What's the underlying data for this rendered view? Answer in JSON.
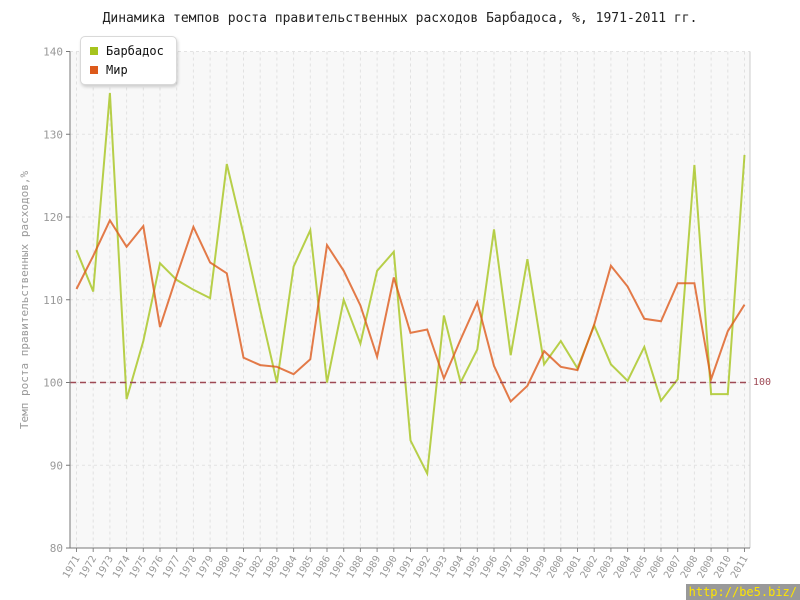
{
  "chart_data": {
    "type": "line",
    "title": "Динамика темпов роста правительственных расходов Барбадоса, %, 1971-2011 гг.",
    "ylabel": "Темп роста правительственных расходов,%",
    "xlabel": "",
    "x": [
      1971,
      1972,
      1973,
      1974,
      1975,
      1976,
      1977,
      1978,
      1979,
      1980,
      1981,
      1982,
      1983,
      1984,
      1985,
      1986,
      1987,
      1988,
      1989,
      1990,
      1991,
      1992,
      1993,
      1994,
      1995,
      1996,
      1997,
      1998,
      1999,
      2000,
      2001,
      2002,
      2003,
      2004,
      2005,
      2006,
      2007,
      2008,
      2009,
      2010,
      2011
    ],
    "series": [
      {
        "name": "Барбадос",
        "color": "#a6c41d",
        "values": [
          116,
          111,
          135,
          98,
          105,
          114.4,
          112.4,
          111.2,
          110.2,
          126.4,
          117.9,
          108.8,
          100,
          114,
          118.4,
          100,
          110,
          104.7,
          113.5,
          115.8,
          93,
          89,
          108.1,
          100,
          104,
          118.5,
          103.3,
          114.9,
          102.2,
          105,
          101.7,
          106.9,
          102.2,
          100.2,
          104.3,
          97.8,
          100.4,
          126.3,
          98.6,
          98.6,
          127.5
        ]
      },
      {
        "name": "Мир",
        "color": "#dd5a1b",
        "values": [
          111.3,
          115.3,
          119.6,
          116.4,
          118.9,
          106.7,
          112.9,
          118.8,
          114.5,
          113.2,
          103,
          102.1,
          101.9,
          101,
          102.8,
          116.6,
          113.5,
          109.3,
          103.1,
          112.7,
          106,
          106.4,
          100.5,
          105.2,
          109.7,
          102,
          97.7,
          99.6,
          103.8,
          101.9,
          101.5,
          107,
          114.1,
          111.6,
          107.7,
          107.4,
          112,
          112,
          100.4,
          106.2,
          109.4
        ]
      }
    ],
    "ylim": [
      80,
      140
    ],
    "yticks": [
      80,
      90,
      100,
      110,
      120,
      130,
      140
    ],
    "grid": "dashed",
    "legend_position": "top-left",
    "ref_line": {
      "value": 100,
      "label": "100",
      "color": "#9e4a55"
    }
  },
  "watermark": {
    "text": "http://be5.biz/",
    "bg": "#999999",
    "fg": "#ffe500"
  }
}
